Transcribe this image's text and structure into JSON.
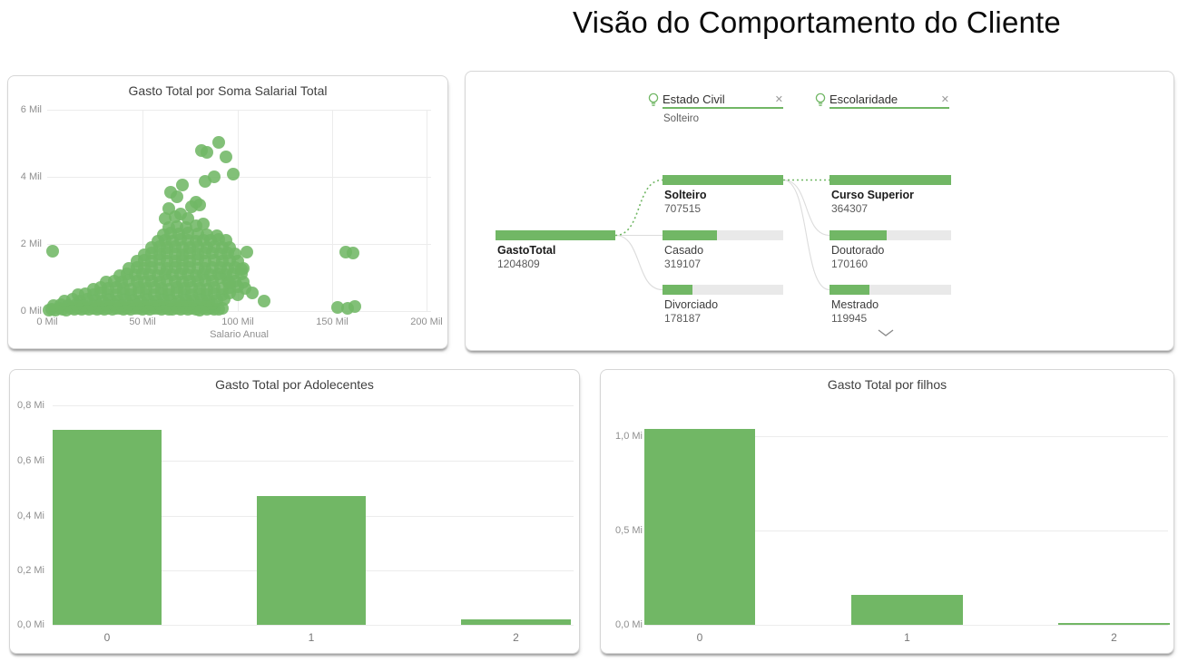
{
  "page": {
    "title": "Visão do Comportamento do Cliente"
  },
  "colors": {
    "green": "#71b765",
    "bar_track": "#e9e9e9",
    "grid": "#ececec",
    "tick_text": "#8f8f8f",
    "panel_title": "#3f3f3f",
    "connector_gray": "#dcdcdc"
  },
  "icons": {
    "close": "✕",
    "bulb": "lightbulb-icon",
    "chevron": "chevron-down-icon"
  },
  "chart_data": [
    {
      "id": "scatter",
      "type": "scatter",
      "title": "Gasto Total por Soma Salarial Total",
      "xlabel": "Salario Anual",
      "ylabel": "",
      "x_unit": "Mil",
      "y_unit": "Mil",
      "xlim": [
        0,
        200
      ],
      "ylim": [
        0,
        6
      ],
      "x_ticks": [
        "0 Mil",
        "50 Mil",
        "100 Mil",
        "150 Mil",
        "200 Mil"
      ],
      "y_ticks": [
        "6 Mil",
        "4 Mil",
        "2 Mil",
        "0 Mil"
      ],
      "grid": true,
      "points": [
        [
          0.5,
          0.04
        ],
        [
          2,
          0.06
        ],
        [
          4,
          0.04
        ],
        [
          6,
          0.07
        ],
        [
          8,
          0.05
        ],
        [
          10,
          0.04
        ],
        [
          12,
          0.07
        ],
        [
          14,
          0.05
        ],
        [
          16,
          0.08
        ],
        [
          18,
          0.05
        ],
        [
          20,
          0.07
        ],
        [
          22,
          0.05
        ],
        [
          24,
          0.08
        ],
        [
          26,
          0.06
        ],
        [
          28,
          0.09
        ],
        [
          30,
          0.06
        ],
        [
          32,
          0.08
        ],
        [
          34,
          0.06
        ],
        [
          36,
          0.09
        ],
        [
          38,
          0.07
        ],
        [
          40,
          0.05
        ],
        [
          42,
          0.08
        ],
        [
          44,
          0.06
        ],
        [
          46,
          0.09
        ],
        [
          48,
          0.07
        ],
        [
          50,
          0.05
        ],
        [
          52,
          0.08
        ],
        [
          54,
          0.06
        ],
        [
          56,
          0.09
        ],
        [
          58,
          0.07
        ],
        [
          60,
          0.05
        ],
        [
          62,
          0.08
        ],
        [
          64,
          0.06
        ],
        [
          66,
          0.05
        ],
        [
          68,
          0.08
        ],
        [
          70,
          0.05
        ],
        [
          72,
          0.07
        ],
        [
          74,
          0.05
        ],
        [
          76,
          0.08
        ],
        [
          78,
          0.06
        ],
        [
          80,
          0.04
        ],
        [
          82,
          0.07
        ],
        [
          84,
          0.05
        ],
        [
          86,
          0.08
        ],
        [
          88,
          0.06
        ],
        [
          90,
          0.05
        ],
        [
          92,
          0.07
        ],
        [
          3,
          0.17
        ],
        [
          7,
          0.19
        ],
        [
          11,
          0.16
        ],
        [
          15,
          0.2
        ],
        [
          19,
          0.17
        ],
        [
          23,
          0.19
        ],
        [
          27,
          0.16
        ],
        [
          31,
          0.2
        ],
        [
          35,
          0.18
        ],
        [
          39,
          0.16
        ],
        [
          43,
          0.2
        ],
        [
          47,
          0.18
        ],
        [
          51,
          0.16
        ],
        [
          55,
          0.2
        ],
        [
          59,
          0.18
        ],
        [
          63,
          0.17
        ],
        [
          67,
          0.19
        ],
        [
          71,
          0.18
        ],
        [
          75,
          0.2
        ],
        [
          79,
          0.17
        ],
        [
          83,
          0.19
        ],
        [
          87,
          0.21
        ],
        [
          9,
          0.3
        ],
        [
          13,
          0.34
        ],
        [
          17,
          0.31
        ],
        [
          21,
          0.35
        ],
        [
          25,
          0.32
        ],
        [
          29,
          0.3
        ],
        [
          33,
          0.34
        ],
        [
          37,
          0.31
        ],
        [
          41,
          0.35
        ],
        [
          45,
          0.32
        ],
        [
          49,
          0.3
        ],
        [
          53,
          0.34
        ],
        [
          57,
          0.31
        ],
        [
          61,
          0.35
        ],
        [
          65,
          0.32
        ],
        [
          69,
          0.3
        ],
        [
          73,
          0.33
        ],
        [
          77,
          0.32
        ],
        [
          81,
          0.34
        ],
        [
          85,
          0.31
        ],
        [
          89,
          0.33
        ],
        [
          93,
          0.35
        ],
        [
          16,
          0.48
        ],
        [
          20,
          0.52
        ],
        [
          24,
          0.49
        ],
        [
          28,
          0.53
        ],
        [
          32,
          0.5
        ],
        [
          36,
          0.48
        ],
        [
          40,
          0.52
        ],
        [
          44,
          0.49
        ],
        [
          48,
          0.53
        ],
        [
          52,
          0.5
        ],
        [
          56,
          0.48
        ],
        [
          60,
          0.52
        ],
        [
          64,
          0.5
        ],
        [
          68,
          0.53
        ],
        [
          72,
          0.5
        ],
        [
          76,
          0.48
        ],
        [
          80,
          0.52
        ],
        [
          84,
          0.5
        ],
        [
          88,
          0.52
        ],
        [
          92,
          0.49
        ],
        [
          96,
          0.53
        ],
        [
          100,
          0.5
        ],
        [
          24,
          0.66
        ],
        [
          28,
          0.7
        ],
        [
          32,
          0.67
        ],
        [
          36,
          0.71
        ],
        [
          40,
          0.68
        ],
        [
          44,
          0.66
        ],
        [
          48,
          0.7
        ],
        [
          52,
          0.67
        ],
        [
          56,
          0.71
        ],
        [
          60,
          0.68
        ],
        [
          64,
          0.66
        ],
        [
          68,
          0.7
        ],
        [
          72,
          0.68
        ],
        [
          76,
          0.71
        ],
        [
          80,
          0.68
        ],
        [
          84,
          0.66
        ],
        [
          88,
          0.7
        ],
        [
          92,
          0.68
        ],
        [
          96,
          0.7
        ],
        [
          100,
          0.72
        ],
        [
          104,
          0.68
        ],
        [
          31,
          0.86
        ],
        [
          35,
          0.9
        ],
        [
          39,
          0.87
        ],
        [
          43,
          0.91
        ],
        [
          47,
          0.88
        ],
        [
          51,
          0.86
        ],
        [
          55,
          0.9
        ],
        [
          59,
          0.87
        ],
        [
          63,
          0.91
        ],
        [
          67,
          0.88
        ],
        [
          71,
          0.86
        ],
        [
          75,
          0.9
        ],
        [
          79,
          0.88
        ],
        [
          83,
          0.91
        ],
        [
          87,
          0.88
        ],
        [
          91,
          1.0
        ],
        [
          95,
          0.88
        ],
        [
          99,
          0.9
        ],
        [
          103,
          0.87
        ],
        [
          38,
          1.06
        ],
        [
          42,
          1.1
        ],
        [
          46,
          1.07
        ],
        [
          50,
          1.11
        ],
        [
          54,
          1.08
        ],
        [
          58,
          1.06
        ],
        [
          62,
          1.1
        ],
        [
          66,
          1.07
        ],
        [
          70,
          1.11
        ],
        [
          74,
          1.08
        ],
        [
          78,
          1.06
        ],
        [
          82,
          1.1
        ],
        [
          86,
          1.08
        ],
        [
          90,
          1.11
        ],
        [
          94,
          1.08
        ],
        [
          98,
          1.1
        ],
        [
          102,
          1.12
        ],
        [
          43,
          1.26
        ],
        [
          47,
          1.3
        ],
        [
          51,
          1.27
        ],
        [
          55,
          1.31
        ],
        [
          59,
          1.28
        ],
        [
          63,
          1.26
        ],
        [
          67,
          1.3
        ],
        [
          71,
          1.27
        ],
        [
          75,
          1.31
        ],
        [
          79,
          1.28
        ],
        [
          83,
          1.26
        ],
        [
          87,
          1.3
        ],
        [
          91,
          1.3
        ],
        [
          95,
          1.28
        ],
        [
          99,
          1.3
        ],
        [
          103,
          1.27
        ],
        [
          47,
          1.48
        ],
        [
          51,
          1.52
        ],
        [
          55,
          1.49
        ],
        [
          59,
          1.53
        ],
        [
          63,
          1.5
        ],
        [
          67,
          1.48
        ],
        [
          71,
          1.52
        ],
        [
          75,
          1.49
        ],
        [
          79,
          1.53
        ],
        [
          83,
          1.5
        ],
        [
          88,
          1.52
        ],
        [
          92,
          1.5
        ],
        [
          96,
          1.52
        ],
        [
          100,
          1.48
        ],
        [
          51,
          1.68
        ],
        [
          55,
          1.72
        ],
        [
          59,
          1.69
        ],
        [
          63,
          1.73
        ],
        [
          67,
          1.7
        ],
        [
          71,
          1.68
        ],
        [
          75,
          1.72
        ],
        [
          79,
          1.7
        ],
        [
          83,
          1.73
        ],
        [
          87,
          1.72
        ],
        [
          91,
          1.7
        ],
        [
          95,
          1.73
        ],
        [
          99,
          1.7
        ],
        [
          55,
          1.88
        ],
        [
          59,
          1.92
        ],
        [
          63,
          1.89
        ],
        [
          67,
          1.93
        ],
        [
          71,
          1.9
        ],
        [
          75,
          1.88
        ],
        [
          79,
          1.92
        ],
        [
          84,
          1.9
        ],
        [
          88,
          1.92
        ],
        [
          92,
          1.9
        ],
        [
          96,
          1.88
        ],
        [
          58,
          2.08
        ],
        [
          62,
          2.12
        ],
        [
          66,
          2.09
        ],
        [
          70,
          2.13
        ],
        [
          74,
          2.1
        ],
        [
          78,
          2.08
        ],
        [
          82,
          2.12
        ],
        [
          86,
          2.1
        ],
        [
          90,
          2.13
        ],
        [
          94,
          2.1
        ],
        [
          61,
          2.28
        ],
        [
          65,
          2.32
        ],
        [
          69,
          2.29
        ],
        [
          74,
          2.33
        ],
        [
          79,
          2.3
        ],
        [
          84,
          2.28
        ],
        [
          89,
          2.25
        ],
        [
          64,
          2.48
        ],
        [
          68,
          2.52
        ],
        [
          73,
          2.5
        ],
        [
          78,
          2.55
        ],
        [
          82,
          2.6
        ],
        [
          62,
          2.75
        ],
        [
          67,
          2.8
        ],
        [
          70,
          2.9
        ],
        [
          74,
          2.75
        ],
        [
          64,
          3.05
        ],
        [
          76,
          3.1
        ],
        [
          78,
          3.25
        ],
        [
          80,
          3.15
        ],
        [
          68,
          3.4
        ],
        [
          65,
          3.55
        ],
        [
          71,
          3.75
        ],
        [
          83,
          3.87
        ],
        [
          88,
          4.0
        ],
        [
          98,
          4.07
        ],
        [
          81,
          4.78
        ],
        [
          84,
          4.74
        ],
        [
          90,
          5.03
        ],
        [
          94,
          4.6
        ],
        [
          2.5,
          1.78
        ],
        [
          96,
          0.85
        ],
        [
          102,
          1.25
        ],
        [
          105,
          1.75
        ],
        [
          108,
          0.55
        ],
        [
          114,
          0.3
        ],
        [
          153,
          0.1
        ],
        [
          158,
          0.09
        ],
        [
          162,
          0.13
        ],
        [
          157,
          1.76
        ],
        [
          161,
          1.74
        ]
      ]
    },
    {
      "id": "decomposition-tree",
      "type": "tree",
      "measure": "GastoTotal",
      "filters": [
        {
          "label": "Estado Civil",
          "selected": "Solteiro"
        },
        {
          "label": "Escolaridade",
          "selected": ""
        }
      ],
      "root": {
        "label": "GastoTotal",
        "value": 1204809,
        "selected": true
      },
      "levels": [
        {
          "field": "Estado Civil",
          "nodes": [
            {
              "label": "Solteiro",
              "value": 707515,
              "selected": true
            },
            {
              "label": "Casado",
              "value": 319107,
              "selected": false
            },
            {
              "label": "Divorciado",
              "value": 178187,
              "selected": false
            }
          ]
        },
        {
          "field": "Escolaridade",
          "nodes": [
            {
              "label": "Curso Superior",
              "value": 364307,
              "selected": true
            },
            {
              "label": "Doutorado",
              "value": 170160,
              "selected": false
            },
            {
              "label": "Mestrado",
              "value": 119945,
              "selected": false
            }
          ]
        }
      ],
      "scroll_more_indicator": true
    },
    {
      "id": "adolescentes",
      "type": "bar",
      "title": "Gasto Total por Adolecentes",
      "categories": [
        "0",
        "1",
        "2"
      ],
      "values": [
        0.71,
        0.47,
        0.02
      ],
      "unit": "Mi",
      "y_ticks": [
        "0,8 Mi",
        "0,6 Mi",
        "0,4 Mi",
        "0,2 Mi",
        "0,0 Mi"
      ],
      "ylim": [
        0,
        0.8
      ],
      "xlabel": "",
      "ylabel": ""
    },
    {
      "id": "filhos",
      "type": "bar",
      "title": "Gasto Total por filhos",
      "categories": [
        "0",
        "1",
        "2"
      ],
      "values": [
        1.04,
        0.16,
        0.01
      ],
      "unit": "Mi",
      "y_ticks": [
        "1,0 Mi",
        "0,5 Mi",
        "0,0 Mi"
      ],
      "ylim": [
        0,
        1.25
      ],
      "xlabel": "",
      "ylabel": ""
    }
  ]
}
